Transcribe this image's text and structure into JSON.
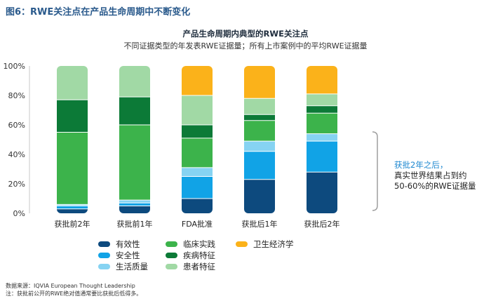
{
  "figure_title": "图6：RWE关注点在产品生命周期中不断变化",
  "colors": {
    "有效性": "#0d4a7e",
    "安全性": "#11a3e6",
    "生活质量": "#86d3f2",
    "临床实践": "#3cb34b",
    "疾病特征": "#0c7a37",
    "患者特征": "#a1d9a5",
    "卫生经济学": "#fbb21a"
  },
  "chart_data": {
    "type": "bar",
    "stacked": true,
    "title": "产品生命周期内典型的RWE关注点",
    "subtitle": "不同证据类型的年发表RWE证据量；所有上市案例中的平均RWE证据量",
    "categories": [
      "获批前2年",
      "获批前1年",
      "FDA批准",
      "获批后1年",
      "获批后2年"
    ],
    "ylim": [
      0,
      100
    ],
    "yticks": [
      "0%",
      "20%",
      "40%",
      "60%",
      "80%",
      "100%"
    ],
    "grid": false,
    "series": [
      {
        "name": "有效性",
        "values": [
          3,
          5,
          10,
          23,
          28
        ]
      },
      {
        "name": "安全性",
        "values": [
          2,
          2,
          15,
          19,
          21
        ]
      },
      {
        "name": "生活质量",
        "values": [
          1,
          2,
          6,
          7,
          5
        ]
      },
      {
        "name": "临床实践",
        "values": [
          49,
          51,
          20,
          14,
          14
        ]
      },
      {
        "name": "疾病特征",
        "values": [
          22,
          19,
          9,
          4,
          5
        ]
      },
      {
        "name": "患者特征",
        "values": [
          23,
          21,
          20,
          11,
          8
        ]
      },
      {
        "name": "卫生经济学",
        "values": [
          0,
          0,
          20,
          22,
          19
        ]
      }
    ]
  },
  "legend": {
    "col1": [
      "有效性",
      "安全性",
      "生活质量"
    ],
    "col2": [
      "临床实践",
      "疾病特征",
      "患者特征"
    ],
    "col3": [
      "卫生经济学"
    ]
  },
  "annotation": {
    "highlight": "获批2年之后，",
    "line2": "真实世界结果占到约",
    "line3": "50-60%的RWE证据量"
  },
  "footer": {
    "source": "数据来源：IQVIA European Thought Leadership",
    "note": "注：获批前公开的RWE绝对值通常要比获批后低得多。"
  }
}
